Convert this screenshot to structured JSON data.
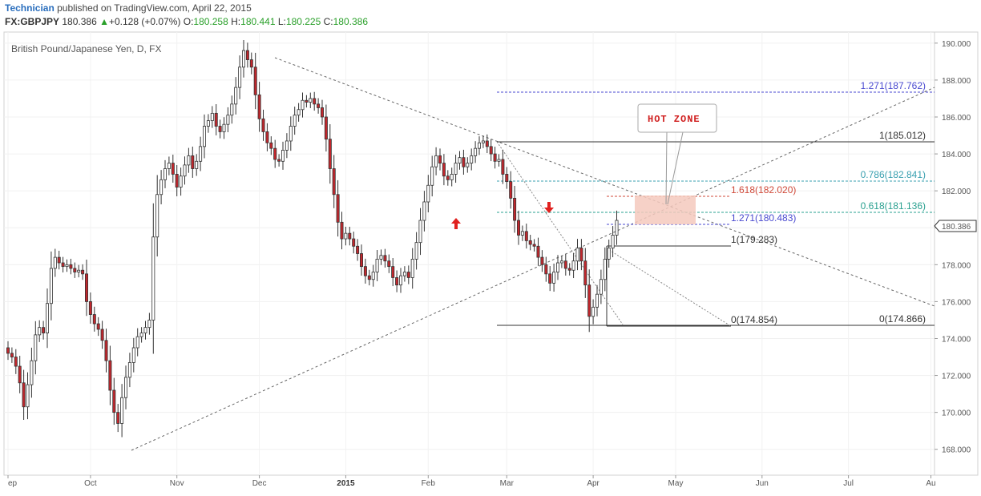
{
  "header": {
    "author": "Technician",
    "published": " published on TradingView.com, April 22, 2015",
    "symbol": "FX:GBPJPY",
    "last": "180.386",
    "change_arrow": "▲",
    "change": "+0.128 (+0.07%)",
    "o_label": "O:",
    "o": "180.258",
    "h_label": "H:",
    "h": "180.441",
    "l_label": "L:",
    "l": "180.225",
    "c_label": "C:",
    "c": "180.386"
  },
  "chart_data": {
    "type": "candlestick",
    "title": "British Pound/Japanese Yen, D, FX",
    "ylim": [
      166.6,
      190.6
    ],
    "y_ticks": [
      "168.000",
      "170.000",
      "172.000",
      "174.000",
      "176.000",
      "178.000",
      "180.000",
      "182.000",
      "184.000",
      "186.000",
      "188.000",
      "190.000"
    ],
    "current_price_label": "180.386",
    "x_ticks": [
      {
        "label": "ep",
        "index": 0
      },
      {
        "label": "Oct",
        "index": 21
      },
      {
        "label": "Nov",
        "index": 43
      },
      {
        "label": "Dec",
        "index": 64
      },
      {
        "label": "2015",
        "index": 86,
        "bold": true
      },
      {
        "label": "Feb",
        "index": 107
      },
      {
        "label": "Mar",
        "index": 127
      },
      {
        "label": "Apr",
        "index": 149
      },
      {
        "label": "May",
        "index": 170
      },
      {
        "label": "Jun",
        "index": 192
      },
      {
        "label": "Jul",
        "index": 214
      },
      {
        "label": "Au",
        "index": 235
      }
    ],
    "closes": [
      173.2,
      173.0,
      172.5,
      171.6,
      170.3,
      171.5,
      172.8,
      174.2,
      174.6,
      174.3,
      175.9,
      177.8,
      178.4,
      178.1,
      177.9,
      178.0,
      177.8,
      177.6,
      177.7,
      177.5,
      176.0,
      175.3,
      174.8,
      174.5,
      173.9,
      172.8,
      171.2,
      170.0,
      169.4,
      170.8,
      171.9,
      172.7,
      173.5,
      174.1,
      174.3,
      174.6,
      175.0,
      179.5,
      181.8,
      182.6,
      183.2,
      183.5,
      182.9,
      182.2,
      182.8,
      183.4,
      183.9,
      183.2,
      183.6,
      184.4,
      185.5,
      185.8,
      186.2,
      185.5,
      185.2,
      185.6,
      186.1,
      186.7,
      187.6,
      188.7,
      189.6,
      189.1,
      188.7,
      187.2,
      185.9,
      185.2,
      184.6,
      184.3,
      183.7,
      183.6,
      184.2,
      184.7,
      185.5,
      186.1,
      186.4,
      186.9,
      186.8,
      187.0,
      186.7,
      186.5,
      186.0,
      184.8,
      183.2,
      181.8,
      180.3,
      179.4,
      179.7,
      179.4,
      179.0,
      178.6,
      177.9,
      177.4,
      177.2,
      177.6,
      178.3,
      178.5,
      178.2,
      177.9,
      177.3,
      176.9,
      177.4,
      177.6,
      177.3,
      178.3,
      179.2,
      180.4,
      181.4,
      182.3,
      183.3,
      183.9,
      183.5,
      182.8,
      182.6,
      182.9,
      183.5,
      183.8,
      183.3,
      183.5,
      183.9,
      184.3,
      184.6,
      184.7,
      184.4,
      184.0,
      183.6,
      183.7,
      182.9,
      182.5,
      181.6,
      180.4,
      179.6,
      179.8,
      179.3,
      179.1,
      179.0,
      178.4,
      178.0,
      177.5,
      177.0,
      177.6,
      178.1,
      178.2,
      177.8,
      177.7,
      178.2,
      178.9,
      178.2,
      176.9,
      175.2,
      175.7,
      176.4,
      177.2,
      178.3,
      178.9,
      179.6,
      180.4
    ],
    "annotations": [
      {
        "type": "label",
        "text": "1.271(187.762)",
        "price": 187.762,
        "color": "#4a4ad0"
      },
      {
        "type": "label",
        "text": "1(185.012)",
        "price": 185.012,
        "color": "#333333"
      },
      {
        "type": "label",
        "text": "0.786(182.841)",
        "price": 182.841,
        "color": "#3aa0b0"
      },
      {
        "type": "label",
        "text": "1.618(182.020)",
        "price": 182.02,
        "color": "#d04a3a"
      },
      {
        "type": "label",
        "text": "0.618(181.136)",
        "price": 181.136,
        "color": "#2aa090"
      },
      {
        "type": "label",
        "text": "1.271(180.483)",
        "price": 180.483,
        "color": "#4a4ad0"
      },
      {
        "type": "label",
        "text": "1(179.283)",
        "price": 179.283,
        "color": "#333333"
      },
      {
        "type": "label",
        "text": "0(174.854)",
        "price": 174.854,
        "color": "#333333"
      },
      {
        "type": "label",
        "text": "0(174.866)",
        "price": 174.866,
        "color": "#333333"
      }
    ],
    "hot_zone_label": "HOT ZONE",
    "colors": {
      "up": "#ffffff",
      "down": "#c1272d",
      "outline": "#333333",
      "arrow": "#e0201e",
      "zone": "#f5c9bd"
    }
  }
}
